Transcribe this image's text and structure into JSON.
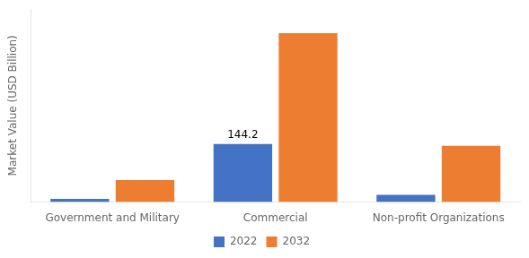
{
  "chart_data": {
    "type": "bar",
    "ylabel": "Market Value (USD Billion)",
    "categories": [
      "Government and Military",
      "Commercial",
      "Non-profit Organizations"
    ],
    "series": [
      {
        "name": "2022",
        "color": "#4472C4",
        "values": [
          8,
          144.2,
          18
        ]
      },
      {
        "name": "2032",
        "color": "#ED7D31",
        "values": [
          55,
          420,
          140
        ]
      }
    ],
    "ylim": [
      0,
      480
    ],
    "tick_labels": "x",
    "grid": false,
    "legend": "bottom",
    "annotations": [
      {
        "text": "144.2",
        "series": "2022",
        "category": "Commercial"
      }
    ]
  }
}
